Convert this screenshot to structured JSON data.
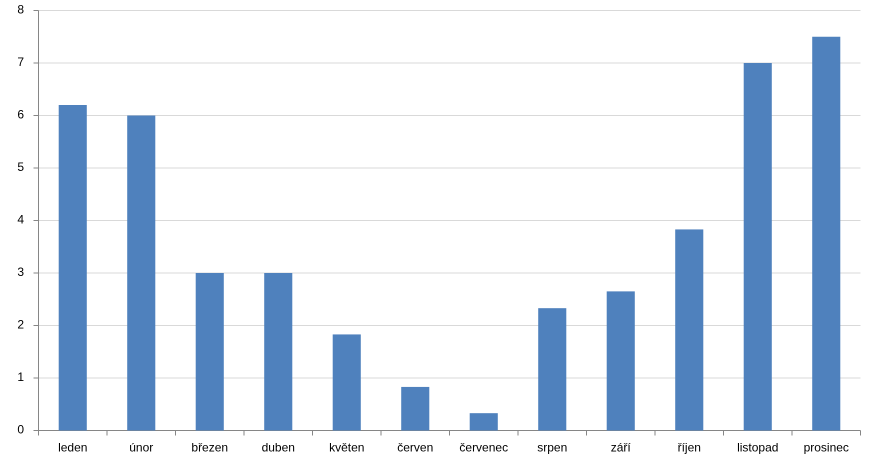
{
  "chart_data": {
    "type": "bar",
    "categories": [
      "leden",
      "únor",
      "březen",
      "duben",
      "květen",
      "červen",
      "červenec",
      "srpen",
      "září",
      "říjen",
      "listopad",
      "prosinec"
    ],
    "values": [
      6.2,
      6,
      3,
      3,
      1.83,
      0.83,
      0.33,
      2.33,
      2.65,
      3.83,
      7,
      7.5
    ],
    "color": "#4f81bd",
    "ylim": [
      0,
      8
    ],
    "yticks": [
      0,
      1,
      2,
      3,
      4,
      5,
      6,
      7,
      8
    ],
    "grid": true
  }
}
